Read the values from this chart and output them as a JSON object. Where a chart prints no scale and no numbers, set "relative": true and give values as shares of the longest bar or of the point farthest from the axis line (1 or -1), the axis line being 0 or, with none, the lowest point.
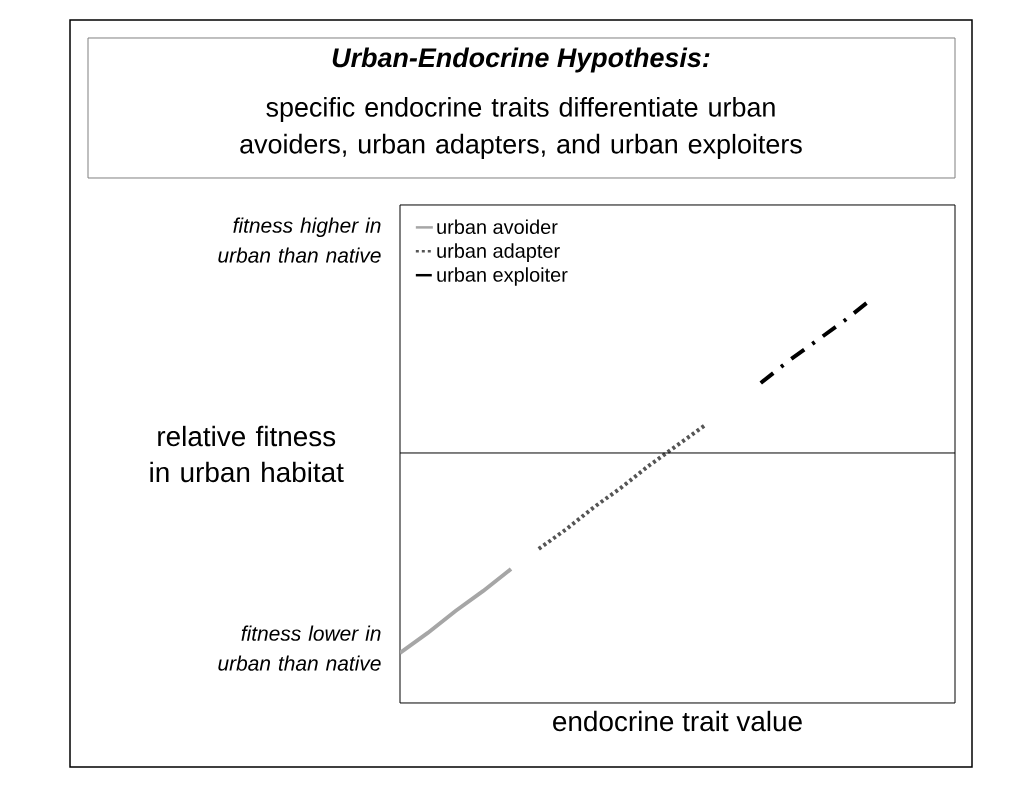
{
  "chart_data": {
    "type": "line",
    "title": "Urban-Endocrine Hypothesis:",
    "subtitle": "specific endocrine traits differentiate urban avoiders, urban adapters, and urban exploiters",
    "xlabel": "endocrine trait value",
    "ylabel": "relative fitness in urban habitat",
    "relative": true,
    "legend": "top left",
    "annotations": [
      "fitness higher in urban than native",
      "fitness lower in urban than native"
    ],
    "categories": [
      null,
      null,
      null,
      null,
      null,
      null,
      null,
      null,
      null,
      null,
      null,
      null,
      null,
      null,
      null,
      null,
      null,
      null,
      null,
      null,
      null
    ],
    "series": [
      {
        "name": "urban avoider",
        "color": "#a6a6a6",
        "line_style": "solid",
        "values": [
          -1.0,
          -0.9,
          -0.79,
          -0.69,
          -0.58,
          null,
          null,
          null,
          null,
          null,
          null,
          null,
          null,
          null,
          null,
          null,
          null,
          null,
          null,
          null,
          null
        ]
      },
      {
        "name": "urban adapter",
        "color": "#555555",
        "line_style": "dotted",
        "values": [
          null,
          null,
          null,
          null,
          null,
          -0.48,
          -0.38,
          -0.27,
          -0.17,
          -0.06,
          0.04,
          0.14,
          null,
          null,
          null,
          null,
          null,
          null,
          null,
          null,
          null
        ]
      },
      {
        "name": "urban exploiter",
        "color": "#000000",
        "line_style": "dashdot",
        "values": [
          null,
          null,
          null,
          null,
          null,
          null,
          null,
          null,
          null,
          null,
          null,
          null,
          null,
          0.35,
          0.46,
          0.56,
          0.66,
          0.77,
          null,
          null,
          null
        ]
      }
    ]
  }
}
